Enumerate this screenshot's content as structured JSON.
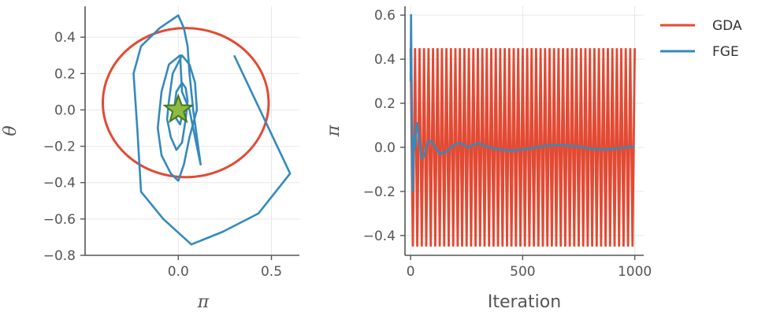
{
  "colors": {
    "gda": "#e24a33",
    "fge": "#348abd",
    "star_fill": "#8eba42",
    "star_edge": "#467821"
  },
  "legend": {
    "placement": "top-right",
    "entries": [
      {
        "key": "gda",
        "label": "GDA"
      },
      {
        "key": "fge",
        "label": "FGE"
      }
    ]
  },
  "chart_data": [
    {
      "type": "line",
      "xlabel": "π",
      "ylabel": "θ",
      "xlim": [
        -0.5,
        0.65
      ],
      "ylim": [
        -0.8,
        0.57
      ],
      "xticks": [
        0.0,
        0.5
      ],
      "xtick_labels": [
        "0.0",
        "0.5"
      ],
      "yticks": [
        0.4,
        0.2,
        0.0,
        -0.2,
        -0.4,
        -0.6,
        -0.8
      ],
      "ytick_labels": [
        "0.4",
        "0.2",
        "0.0",
        "−0.2",
        "−0.4",
        "−0.6",
        "−0.8"
      ],
      "grid": true,
      "series": [
        {
          "name": "GDA",
          "kind": "circle",
          "center": [
            0.04,
            0.04
          ],
          "radius_x": 0.445,
          "radius_y": 0.41
        },
        {
          "name": "FGE",
          "kind": "polyline",
          "x": [
            0.3,
            0.6,
            0.43,
            0.24,
            0.07,
            -0.08,
            -0.2,
            -0.22,
            -0.24,
            -0.2,
            -0.1,
            0.0,
            0.03,
            0.05,
            0.06,
            0.08,
            0.1,
            0.12,
            0.1,
            0.06,
            0.02,
            0.01,
            -0.05,
            -0.09,
            -0.11,
            -0.09,
            -0.04,
            0.0,
            0.03,
            0.06,
            0.1,
            0.09,
            0.06,
            0.02,
            -0.03,
            -0.05,
            -0.06,
            -0.04,
            -0.01,
            0.02,
            0.04,
            0.05,
            0.04,
            0.02,
            -0.01,
            -0.02,
            -0.01,
            0.01,
            0.02,
            0.01,
            0.0
          ],
          "y": [
            0.3,
            -0.35,
            -0.57,
            -0.67,
            -0.74,
            -0.6,
            -0.45,
            -0.1,
            0.2,
            0.35,
            0.45,
            0.52,
            0.45,
            0.35,
            0.2,
            0.0,
            -0.15,
            -0.3,
            -0.2,
            0.0,
            0.1,
            0.3,
            0.25,
            0.1,
            -0.1,
            -0.25,
            -0.35,
            -0.39,
            -0.3,
            -0.15,
            0.0,
            0.15,
            0.25,
            0.3,
            0.2,
            0.05,
            -0.05,
            -0.15,
            -0.22,
            -0.18,
            -0.05,
            0.05,
            0.12,
            0.15,
            0.1,
            0.02,
            -0.05,
            -0.08,
            -0.03,
            0.02,
            0.0
          ]
        }
      ],
      "marker": {
        "name": "equilibrium",
        "shape": "star",
        "x": 0.0,
        "y": 0.0
      }
    },
    {
      "type": "line",
      "xlabel": "Iteration",
      "ylabel": "π",
      "xlim": [
        -25,
        1040
      ],
      "ylim": [
        -0.49,
        0.64
      ],
      "xticks": [
        0,
        500,
        1000
      ],
      "xtick_labels": [
        "0",
        "500",
        "1000"
      ],
      "yticks": [
        0.6,
        0.4,
        0.2,
        0.0,
        -0.2,
        -0.4
      ],
      "ytick_labels": [
        "0.6",
        "0.4",
        "0.2",
        "0.0",
        "−0.2",
        "−0.4"
      ],
      "grid": true,
      "series": [
        {
          "name": "GDA",
          "kind": "oscillation",
          "amplitude": 0.45,
          "period": 20,
          "x_start": 0,
          "x_end": 1000
        },
        {
          "name": "FGE",
          "kind": "polyline",
          "x": [
            0,
            2,
            5,
            8,
            12,
            16,
            20,
            25,
            30,
            35,
            40,
            50,
            60,
            70,
            80,
            95,
            110,
            130,
            160,
            190,
            220,
            260,
            300,
            350,
            400,
            450,
            500,
            560,
            620,
            680,
            740,
            800,
            860,
            920,
            960,
            1000
          ],
          "y": [
            0.3,
            0.6,
            0.3,
            -0.2,
            -0.1,
            0.05,
            0.0,
            0.1,
            0.11,
            0.06,
            0.02,
            -0.05,
            -0.04,
            0.0,
            0.03,
            0.025,
            0.0,
            -0.03,
            -0.02,
            0.01,
            0.02,
            0.0,
            0.02,
            0.0,
            -0.01,
            -0.015,
            -0.01,
            0.0,
            0.01,
            0.01,
            0.005,
            -0.005,
            -0.01,
            -0.005,
            0.0,
            0.005
          ]
        }
      ]
    }
  ]
}
